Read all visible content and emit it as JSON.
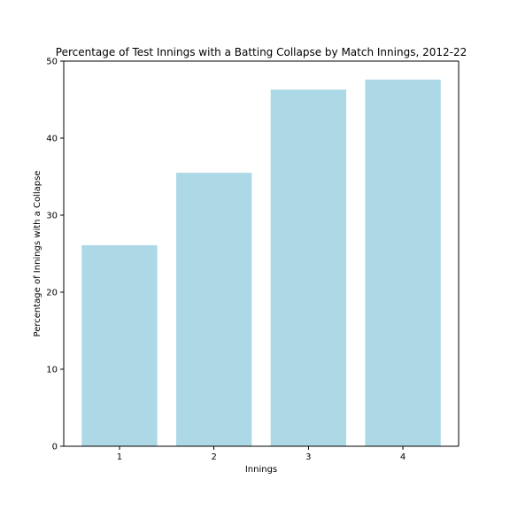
{
  "chart_data": {
    "type": "bar",
    "title": "Percentage of Test Innings with a Batting Collapse by Match Innings, 2012-22",
    "xlabel": "Innings",
    "ylabel": "Percentage of Innings with a Collapse",
    "categories": [
      "1",
      "2",
      "3",
      "4"
    ],
    "values": [
      26.1,
      35.5,
      46.3,
      47.6
    ],
    "ylim": [
      0,
      50
    ],
    "yticks": [
      "0",
      "10",
      "20",
      "30",
      "40",
      "50"
    ],
    "bar_color": "#add8e6",
    "grid": false,
    "legend": false
  }
}
